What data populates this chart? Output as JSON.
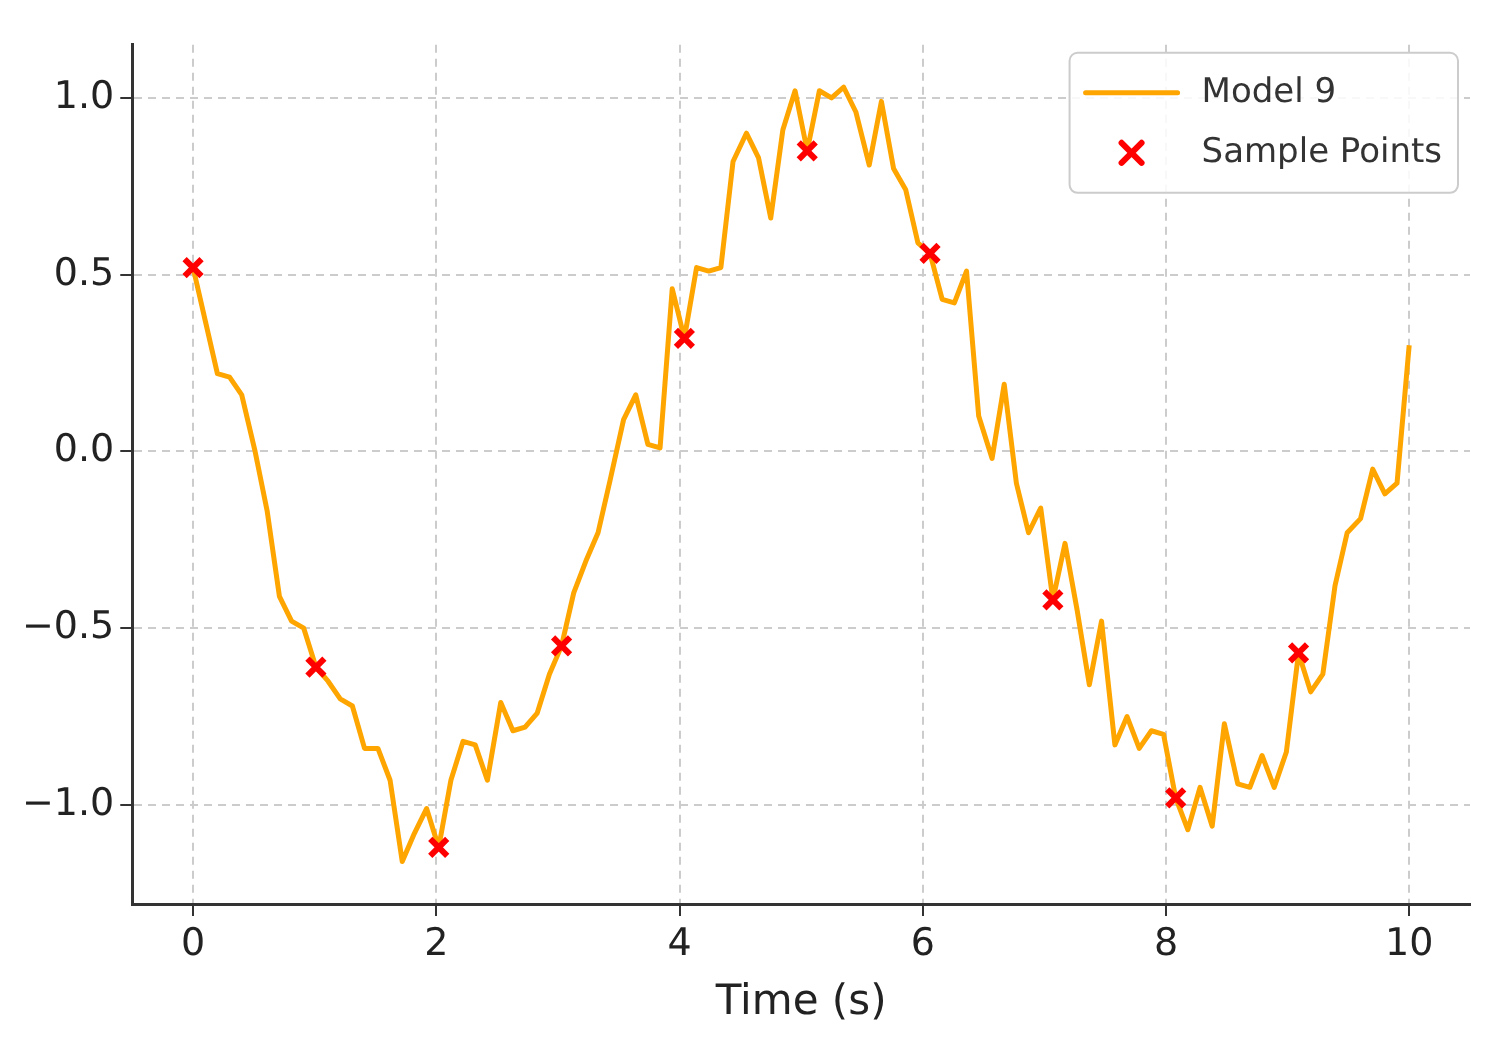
{
  "chart_data": {
    "type": "line",
    "xlabel": "Time (s)",
    "xlim": [
      -0.5,
      10.5
    ],
    "ylim": [
      -1.28,
      1.15
    ],
    "xticks": [
      0,
      2,
      4,
      6,
      8,
      10
    ],
    "yticks": [
      {
        "value": -1,
        "label": "−1.0"
      },
      {
        "value": -0.5,
        "label": "−0.5"
      },
      {
        "value": 0,
        "label": "0.0"
      },
      {
        "value": 0.5,
        "label": "0.5"
      },
      {
        "value": 1,
        "label": "1.0"
      }
    ],
    "grid": true,
    "legend": "top right",
    "series": [
      {
        "name": "Model 9",
        "color": "#ffa500",
        "marker": "none",
        "x": [
          0,
          0.1,
          0.2,
          0.3,
          0.4,
          0.51,
          0.61,
          0.71,
          0.81,
          0.91,
          1.01,
          1.11,
          1.21,
          1.31,
          1.41,
          1.52,
          1.62,
          1.72,
          1.82,
          1.92,
          2.02,
          2.12,
          2.22,
          2.32,
          2.42,
          2.53,
          2.63,
          2.73,
          2.83,
          2.93,
          3.03,
          3.13,
          3.23,
          3.33,
          3.43,
          3.54,
          3.64,
          3.74,
          3.84,
          3.94,
          4.04,
          4.14,
          4.24,
          4.34,
          4.44,
          4.55,
          4.65,
          4.75,
          4.85,
          4.95,
          5.05,
          5.15,
          5.25,
          5.35,
          5.45,
          5.56,
          5.66,
          5.76,
          5.86,
          5.96,
          6.06,
          6.16,
          6.26,
          6.36,
          6.46,
          6.57,
          6.67,
          6.77,
          6.87,
          6.97,
          7.07,
          7.17,
          7.27,
          7.37,
          7.47,
          7.58,
          7.68,
          7.78,
          7.88,
          7.98,
          8.08,
          8.18,
          8.28,
          8.38,
          8.48,
          8.59,
          8.69,
          8.79,
          8.89,
          8.99,
          9.09,
          9.19,
          9.29,
          9.39,
          9.49,
          9.6,
          9.7,
          9.8,
          9.9,
          10
        ],
        "values": [
          0.52,
          0.37,
          0.22,
          0.21,
          0.16,
          0,
          -0.17,
          -0.41,
          -0.48,
          -0.5,
          -0.61,
          -0.65,
          -0.7,
          -0.72,
          -0.84,
          -0.84,
          -0.93,
          -1.16,
          -1.08,
          -1.01,
          -1.12,
          -0.93,
          -0.82,
          -0.83,
          -0.93,
          -0.71,
          -0.79,
          -0.78,
          -0.74,
          -0.63,
          -0.55,
          -0.4,
          -0.31,
          -0.23,
          -0.08,
          0.09,
          0.16,
          0.02,
          0.01,
          0.46,
          0.32,
          0.52,
          0.51,
          0.52,
          0.82,
          0.9,
          0.83,
          0.66,
          0.91,
          1.02,
          0.85,
          1.02,
          1,
          1.03,
          0.96,
          0.81,
          0.99,
          0.8,
          0.74,
          0.59,
          0.56,
          0.43,
          0.42,
          0.51,
          0.1,
          -0.02,
          0.19,
          -0.09,
          -0.23,
          -0.16,
          -0.42,
          -0.26,
          -0.45,
          -0.66,
          -0.48,
          -0.83,
          -0.75,
          -0.84,
          -0.79,
          -0.8,
          -0.98,
          -1.07,
          -0.95,
          -1.06,
          -0.77,
          -0.94,
          -0.95,
          -0.86,
          -0.95,
          -0.85,
          -0.57,
          -0.68,
          -0.63,
          -0.38,
          -0.23,
          -0.19,
          -0.05,
          -0.12,
          -0.09,
          0.3
        ]
      },
      {
        "name": "Sample Points",
        "type": "scatter",
        "color": "#ff0000",
        "marker": "cross",
        "x": [
          0,
          1.01,
          2.02,
          3.03,
          4.04,
          5.05,
          6.06,
          7.07,
          8.08,
          9.09
        ],
        "values": [
          0.52,
          -0.61,
          -1.12,
          -0.55,
          0.32,
          0.85,
          0.56,
          -0.42,
          -0.98,
          -0.57
        ]
      }
    ]
  }
}
